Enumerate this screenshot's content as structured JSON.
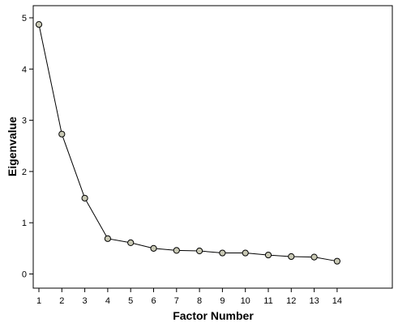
{
  "chart_data": {
    "type": "line",
    "title": "",
    "xlabel": "Factor Number",
    "ylabel": "Eigenvalue",
    "x": [
      1,
      2,
      3,
      4,
      5,
      6,
      7,
      8,
      9,
      10,
      11,
      12,
      13,
      14
    ],
    "series": [
      {
        "values": [
          4.87,
          2.73,
          1.48,
          0.69,
          0.61,
          0.5,
          0.46,
          0.45,
          0.41,
          0.41,
          0.37,
          0.34,
          0.33,
          0.25
        ]
      }
    ],
    "xlim": [
      0,
      15
    ],
    "ylim": [
      -0.3,
      5.3
    ],
    "y_ticks": [
      0,
      1,
      2,
      3,
      4,
      5
    ],
    "x_tick_labels": [
      "1",
      "2",
      "3",
      "4",
      "5",
      "6",
      "7",
      "8",
      "9",
      "10",
      "11",
      "12",
      "13",
      "14"
    ],
    "y_tick_labels": [
      "0",
      "1",
      "2",
      "3",
      "4",
      "5"
    ],
    "grid": false,
    "legend": "none",
    "colors": {
      "line": "#000000",
      "marker_fill": "#c8c8b4",
      "marker_stroke": "#000000",
      "frame": "#000000"
    }
  }
}
